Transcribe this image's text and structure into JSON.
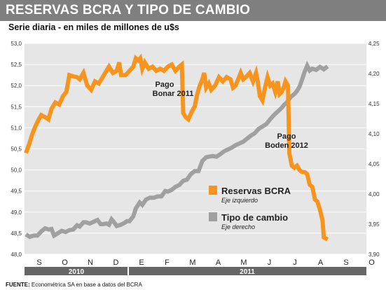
{
  "header": {
    "title": "RESERVAS BCRA Y TIPO DE CAMBIO",
    "subtitle": "Serie diaria - en miles de millones de u$s"
  },
  "footer": {
    "label": "FUENTE:",
    "text": "Econométrica SA en base a datos del BCRA"
  },
  "colors": {
    "reservas": "#f7941d",
    "tipo_cambio": "#a0a0a0",
    "title_bar": "#7f7f7f",
    "plot_bg": "#e6e6e6",
    "year_bar": "#666666"
  },
  "chart_data": {
    "type": "line",
    "x_labels": [
      "S",
      "O",
      "N",
      "D",
      "E",
      "F",
      "M",
      "A",
      "M",
      "J",
      "J",
      "A",
      "S",
      "O"
    ],
    "years": [
      "2010",
      "2011"
    ],
    "y_left": {
      "range": [
        48.0,
        53.0
      ],
      "ticks": [
        "48,0",
        "48,5",
        "49,0",
        "49,5",
        "50,0",
        "50,5",
        "51,0",
        "51,5",
        "52,0",
        "52,5",
        "53,0"
      ]
    },
    "y_right": {
      "range": [
        3.9,
        4.25
      ],
      "ticks": [
        "3,90",
        "3,95",
        "4,00",
        "4,05",
        "4,10",
        "4,15",
        "4,20",
        "4,25"
      ]
    },
    "annotations": [
      {
        "line1": "Pago",
        "line2": "Bonar 2011"
      },
      {
        "line1": "Pago",
        "line2": "Boden 2012"
      }
    ],
    "legend": {
      "position": "bottom-right",
      "items": [
        {
          "name": "Reservas BCRA",
          "note": "Eje izquierdo",
          "color": "#f7941d"
        },
        {
          "name": "Tipo de cambio",
          "note": "Eje derecho",
          "color": "#a0a0a0"
        }
      ]
    },
    "series": [
      {
        "name": "Reservas BCRA",
        "axis": "left",
        "values": [
          [
            0,
            50.4
          ],
          [
            0.12,
            50.6
          ],
          [
            0.25,
            50.85
          ],
          [
            0.38,
            51.05
          ],
          [
            0.5,
            51.2
          ],
          [
            0.6,
            51.3
          ],
          [
            0.75,
            51.25
          ],
          [
            0.88,
            51.2
          ],
          [
            1.0,
            51.45
          ],
          [
            1.15,
            51.6
          ],
          [
            1.3,
            51.55
          ],
          [
            1.45,
            51.75
          ],
          [
            1.58,
            51.85
          ],
          [
            1.7,
            52.25
          ],
          [
            1.85,
            52.22
          ],
          [
            2.0,
            52.2
          ],
          [
            2.1,
            52.15
          ],
          [
            2.25,
            52.3
          ],
          [
            2.4,
            52.0
          ],
          [
            2.55,
            51.9
          ],
          [
            2.7,
            52.1
          ],
          [
            2.85,
            52.05
          ],
          [
            3.0,
            52.2
          ],
          [
            3.15,
            52.35
          ],
          [
            3.25,
            52.45
          ],
          [
            3.4,
            52.3
          ],
          [
            3.55,
            52.35
          ],
          [
            3.65,
            52.55
          ],
          [
            3.72,
            52.25
          ],
          [
            3.9,
            52.25
          ],
          [
            4.05,
            52.35
          ],
          [
            4.2,
            52.45
          ],
          [
            4.3,
            52.65
          ],
          [
            4.4,
            52.6
          ],
          [
            4.47,
            52.65
          ],
          [
            4.55,
            52.4
          ],
          [
            4.65,
            52.55
          ],
          [
            4.8,
            52.4
          ],
          [
            4.95,
            52.45
          ],
          [
            5.1,
            52.35
          ],
          [
            5.25,
            52.4
          ],
          [
            5.4,
            52.35
          ],
          [
            5.55,
            52.45
          ],
          [
            5.7,
            52.5
          ],
          [
            5.85,
            52.35
          ],
          [
            6.0,
            52.45
          ],
          [
            6.1,
            52.5
          ],
          [
            6.15,
            51.35
          ],
          [
            6.25,
            51.25
          ],
          [
            6.35,
            51.2
          ],
          [
            6.5,
            51.4
          ],
          [
            6.6,
            51.5
          ],
          [
            6.7,
            51.8
          ],
          [
            6.8,
            52.0
          ],
          [
            6.9,
            52.15
          ],
          [
            6.97,
            52.3
          ],
          [
            7.05,
            51.95
          ],
          [
            7.15,
            52.05
          ],
          [
            7.25,
            51.9
          ],
          [
            7.4,
            52.0
          ],
          [
            7.55,
            52.2
          ],
          [
            7.7,
            52.1
          ],
          [
            7.85,
            52.2
          ],
          [
            8.0,
            52.15
          ],
          [
            8.1,
            51.95
          ],
          [
            8.2,
            52.0
          ],
          [
            8.3,
            52.15
          ],
          [
            8.4,
            52.3
          ],
          [
            8.5,
            52.15
          ],
          [
            8.6,
            52.2
          ],
          [
            8.75,
            52.3
          ],
          [
            8.88,
            52.1
          ],
          [
            9.0,
            52.3
          ],
          [
            9.08,
            52.05
          ],
          [
            9.15,
            51.75
          ],
          [
            9.25,
            51.65
          ],
          [
            9.35,
            51.95
          ],
          [
            9.45,
            52.2
          ],
          [
            9.55,
            52.0
          ],
          [
            9.65,
            52.05
          ],
          [
            9.75,
            51.85
          ],
          [
            9.85,
            52.1
          ],
          [
            9.92,
            51.8
          ],
          [
            10.0,
            51.85
          ],
          [
            10.08,
            51.95
          ],
          [
            10.15,
            52.1
          ],
          [
            10.25,
            52.0
          ],
          [
            10.3,
            50.4
          ],
          [
            10.4,
            50.1
          ],
          [
            10.5,
            50.05
          ],
          [
            10.6,
            50.1
          ],
          [
            10.7,
            50.0
          ],
          [
            10.8,
            49.95
          ],
          [
            10.9,
            49.95
          ],
          [
            11.0,
            49.9
          ],
          [
            11.1,
            49.65
          ],
          [
            11.2,
            49.6
          ],
          [
            11.3,
            49.3
          ],
          [
            11.4,
            49.25
          ],
          [
            11.5,
            49.05
          ],
          [
            11.6,
            48.8
          ],
          [
            11.65,
            48.4
          ],
          [
            11.8,
            48.35
          ]
        ]
      },
      {
        "name": "Tipo de cambio",
        "axis": "right",
        "values": [
          [
            0,
            3.933
          ],
          [
            0.15,
            3.929
          ],
          [
            0.3,
            3.931
          ],
          [
            0.45,
            3.931
          ],
          [
            0.6,
            3.938
          ],
          [
            0.75,
            3.943
          ],
          [
            0.9,
            3.941
          ],
          [
            1.0,
            3.942
          ],
          [
            1.1,
            3.931
          ],
          [
            1.25,
            3.935
          ],
          [
            1.4,
            3.939
          ],
          [
            1.55,
            3.937
          ],
          [
            1.7,
            3.94
          ],
          [
            1.85,
            3.941
          ],
          [
            2.0,
            3.948
          ],
          [
            2.1,
            3.946
          ],
          [
            2.25,
            3.953
          ],
          [
            2.35,
            3.953
          ],
          [
            2.5,
            3.951
          ],
          [
            2.65,
            3.954
          ],
          [
            2.8,
            3.957
          ],
          [
            2.92,
            3.95
          ],
          [
            3.0,
            3.95
          ],
          [
            3.15,
            3.951
          ],
          [
            3.25,
            3.949
          ],
          [
            3.35,
            3.958
          ],
          [
            3.45,
            3.953
          ],
          [
            3.55,
            3.947
          ],
          [
            3.7,
            3.949
          ],
          [
            3.85,
            3.952
          ],
          [
            3.95,
            3.955
          ],
          [
            4.05,
            3.955
          ],
          [
            4.2,
            3.963
          ],
          [
            4.3,
            3.976
          ],
          [
            4.45,
            3.986
          ],
          [
            4.55,
            3.982
          ],
          [
            4.7,
            3.991
          ],
          [
            4.85,
            3.994
          ],
          [
            5.0,
            3.994
          ],
          [
            5.15,
            3.996
          ],
          [
            5.3,
            3.996
          ],
          [
            5.45,
            4.005
          ],
          [
            5.55,
            4.004
          ],
          [
            5.7,
            4.007
          ],
          [
            5.85,
            4.012
          ],
          [
            6.0,
            4.015
          ],
          [
            6.15,
            4.022
          ],
          [
            6.3,
            4.024
          ],
          [
            6.45,
            4.033
          ],
          [
            6.6,
            4.038
          ],
          [
            6.75,
            4.038
          ],
          [
            6.9,
            4.055
          ],
          [
            7.05,
            4.061
          ],
          [
            7.15,
            4.062
          ],
          [
            7.3,
            4.063
          ],
          [
            7.45,
            4.062
          ],
          [
            7.6,
            4.066
          ],
          [
            7.75,
            4.071
          ],
          [
            7.9,
            4.074
          ],
          [
            8.05,
            4.077
          ],
          [
            8.2,
            4.081
          ],
          [
            8.35,
            4.084
          ],
          [
            8.5,
            4.087
          ],
          [
            8.65,
            4.092
          ],
          [
            8.8,
            4.097
          ],
          [
            8.95,
            4.101
          ],
          [
            9.1,
            4.108
          ],
          [
            9.25,
            4.112
          ],
          [
            9.4,
            4.116
          ],
          [
            9.55,
            4.124
          ],
          [
            9.7,
            4.131
          ],
          [
            9.85,
            4.137
          ],
          [
            10.0,
            4.143
          ],
          [
            10.1,
            4.148
          ],
          [
            10.2,
            4.152
          ],
          [
            10.35,
            4.161
          ],
          [
            10.5,
            4.166
          ],
          [
            10.6,
            4.171
          ],
          [
            10.7,
            4.178
          ],
          [
            10.8,
            4.19
          ],
          [
            10.9,
            4.203
          ],
          [
            11.0,
            4.213
          ],
          [
            11.1,
            4.205
          ],
          [
            11.2,
            4.208
          ],
          [
            11.35,
            4.206
          ],
          [
            11.5,
            4.211
          ],
          [
            11.65,
            4.207
          ],
          [
            11.8,
            4.212
          ]
        ]
      }
    ]
  }
}
